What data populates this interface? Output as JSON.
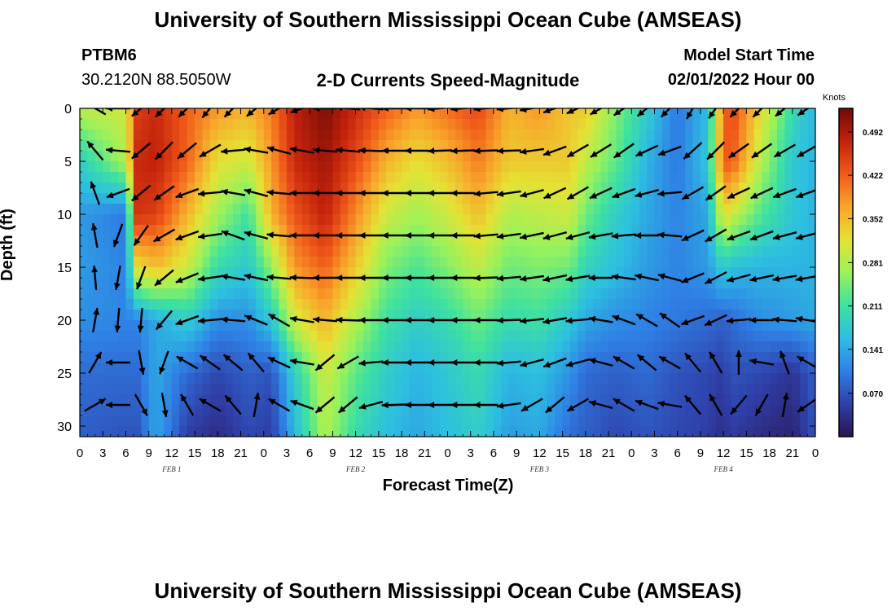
{
  "header": {
    "title": "University of Southern Mississippi Ocean Cube (AMSEAS)",
    "station_id": "PTBM6",
    "station_coords": "30.2120N  88.5050W",
    "chart_title": "2-D Currents Speed-Magnitude",
    "model_start_label": "Model Start Time",
    "model_start_value": "02/01/2022 Hour 00"
  },
  "footer": {
    "repeated_title": "University of Southern Mississippi Ocean Cube (AMSEAS)"
  },
  "colorbar": {
    "unit": "Knots",
    "ticks": [
      "0.492",
      "0.422",
      "0.352",
      "0.281",
      "0.211",
      "0.141",
      "0.070"
    ],
    "colors": [
      "#2b1452",
      "#2f3fa8",
      "#2f7fe5",
      "#2dbfe0",
      "#3ee1a0",
      "#9cf25a",
      "#e5e234",
      "#f8a52b",
      "#f05a1a",
      "#c3220c",
      "#6e0a06"
    ]
  },
  "chart_data": {
    "type": "heatmap",
    "title": "2-D Currents Speed-Magnitude",
    "xlabel": "Forecast Time(Z)",
    "ylabel": "Depth (ft)",
    "x_ticks": [
      "0",
      "3",
      "6",
      "9",
      "12",
      "15",
      "18",
      "21",
      "0",
      "3",
      "6",
      "9",
      "12",
      "15",
      "18",
      "21",
      "0",
      "3",
      "6",
      "9",
      "12",
      "15",
      "18",
      "21",
      "0",
      "3",
      "6",
      "9",
      "12",
      "15",
      "18",
      "21",
      "0"
    ],
    "x_range_hours": [
      0,
      96
    ],
    "date_labels": [
      {
        "label": "FEB 1",
        "hour": 12
      },
      {
        "label": "FEB 2",
        "hour": 36
      },
      {
        "label": "FEB 3",
        "hour": 60
      },
      {
        "label": "FEB 4",
        "hour": 84
      }
    ],
    "y_ticks": [
      "0",
      "5",
      "10",
      "15",
      "20",
      "25",
      "30"
    ],
    "y_range_ft": [
      0,
      31
    ],
    "colorbar_range_knots": [
      0,
      0.53
    ],
    "hours": [
      0,
      6,
      7.5,
      10,
      14,
      18,
      22,
      25,
      28,
      32,
      36,
      40,
      44,
      48,
      52,
      56,
      60,
      64,
      66,
      70,
      74,
      78,
      82,
      84,
      85,
      89,
      93,
      96
    ],
    "depths_ft": [
      0,
      5,
      10,
      15,
      20,
      25,
      31
    ],
    "speed_knots": [
      [
        0.29,
        0.3,
        0.45,
        0.47,
        0.42,
        0.38,
        0.36,
        0.4,
        0.48,
        0.52,
        0.47,
        0.42,
        0.38,
        0.41,
        0.44,
        0.36,
        0.38,
        0.34,
        0.34,
        0.25,
        0.18,
        0.1,
        0.16,
        0.4,
        0.45,
        0.32,
        0.2,
        0.15
      ],
      [
        0.18,
        0.28,
        0.47,
        0.48,
        0.42,
        0.32,
        0.3,
        0.38,
        0.47,
        0.5,
        0.44,
        0.36,
        0.32,
        0.35,
        0.4,
        0.34,
        0.34,
        0.34,
        0.29,
        0.23,
        0.15,
        0.1,
        0.17,
        0.42,
        0.43,
        0.28,
        0.17,
        0.15
      ],
      [
        0.13,
        0.1,
        0.46,
        0.45,
        0.36,
        0.27,
        0.21,
        0.36,
        0.43,
        0.48,
        0.39,
        0.3,
        0.27,
        0.3,
        0.35,
        0.28,
        0.29,
        0.3,
        0.24,
        0.18,
        0.14,
        0.11,
        0.14,
        0.33,
        0.3,
        0.22,
        0.17,
        0.15
      ],
      [
        0.13,
        0.11,
        0.32,
        0.35,
        0.3,
        0.2,
        0.17,
        0.26,
        0.38,
        0.42,
        0.34,
        0.25,
        0.22,
        0.25,
        0.29,
        0.24,
        0.25,
        0.24,
        0.19,
        0.16,
        0.13,
        0.11,
        0.13,
        0.18,
        0.16,
        0.15,
        0.15,
        0.15
      ],
      [
        0.12,
        0.11,
        0.11,
        0.14,
        0.18,
        0.12,
        0.12,
        0.17,
        0.3,
        0.36,
        0.28,
        0.21,
        0.18,
        0.2,
        0.24,
        0.2,
        0.21,
        0.17,
        0.14,
        0.12,
        0.11,
        0.1,
        0.09,
        0.08,
        0.09,
        0.12,
        0.13,
        0.14
      ],
      [
        0.09,
        0.09,
        0.09,
        0.14,
        0.09,
        0.06,
        0.08,
        0.07,
        0.18,
        0.3,
        0.23,
        0.18,
        0.15,
        0.17,
        0.2,
        0.15,
        0.16,
        0.12,
        0.09,
        0.08,
        0.09,
        0.07,
        0.06,
        0.05,
        0.07,
        0.06,
        0.04,
        0.08
      ],
      [
        0.08,
        0.07,
        0.07,
        0.14,
        0.05,
        0.03,
        0.06,
        0.05,
        0.15,
        0.28,
        0.2,
        0.16,
        0.14,
        0.16,
        0.18,
        0.13,
        0.14,
        0.09,
        0.08,
        0.06,
        0.07,
        0.06,
        0.05,
        0.03,
        0.05,
        0.03,
        0.02,
        0.07
      ]
    ],
    "vector_hours": [
      2,
      5,
      8,
      11,
      14,
      17,
      20,
      23,
      26,
      29,
      32,
      35,
      38,
      41,
      44,
      47,
      50,
      53,
      56,
      59,
      62,
      65,
      68,
      71,
      74,
      77,
      80,
      83,
      86,
      89,
      92,
      95
    ],
    "vector_depths_ft": [
      0,
      4,
      8,
      12,
      16,
      20,
      24,
      28
    ],
    "vector_direction_deg": [
      [
        300,
        270,
        230,
        225,
        225,
        220,
        225,
        230,
        240,
        250,
        270,
        275,
        275,
        270,
        270,
        265,
        265,
        265,
        265,
        260,
        250,
        245,
        240,
        235,
        230,
        225,
        210,
        215,
        225,
        225,
        230,
        235
      ],
      [
        320,
        275,
        230,
        225,
        230,
        240,
        265,
        280,
        285,
        280,
        275,
        275,
        272,
        270,
        270,
        268,
        268,
        268,
        268,
        262,
        250,
        240,
        238,
        235,
        245,
        250,
        228,
        225,
        235,
        235,
        240,
        240
      ],
      [
        340,
        250,
        230,
        235,
        250,
        265,
        280,
        285,
        275,
        270,
        270,
        270,
        270,
        270,
        270,
        270,
        270,
        265,
        262,
        255,
        245,
        240,
        245,
        250,
        255,
        265,
        240,
        235,
        245,
        245,
        250,
        250
      ],
      [
        350,
        200,
        215,
        240,
        250,
        262,
        290,
        285,
        275,
        270,
        270,
        270,
        270,
        270,
        270,
        270,
        270,
        265,
        262,
        258,
        255,
        255,
        260,
        265,
        270,
        275,
        245,
        240,
        250,
        250,
        255,
        255
      ],
      [
        355,
        190,
        200,
        230,
        248,
        262,
        280,
        282,
        275,
        272,
        270,
        270,
        270,
        270,
        270,
        270,
        270,
        268,
        265,
        262,
        258,
        260,
        270,
        278,
        282,
        285,
        248,
        242,
        255,
        258,
        260,
        260
      ],
      [
        10,
        185,
        185,
        220,
        250,
        265,
        275,
        292,
        300,
        280,
        275,
        272,
        270,
        270,
        270,
        270,
        270,
        270,
        268,
        264,
        260,
        265,
        280,
        290,
        300,
        305,
        250,
        245,
        265,
        270,
        275,
        280
      ],
      [
        30,
        270,
        170,
        200,
        300,
        305,
        310,
        320,
        295,
        280,
        230,
        240,
        265,
        270,
        270,
        270,
        270,
        270,
        265,
        255,
        250,
        255,
        285,
        300,
        310,
        300,
        320,
        330,
        0,
        280,
        340,
        300
      ],
      [
        60,
        270,
        150,
        170,
        330,
        300,
        320,
        10,
        300,
        290,
        230,
        230,
        255,
        268,
        270,
        270,
        270,
        270,
        262,
        240,
        230,
        240,
        285,
        300,
        290,
        280,
        320,
        330,
        220,
        210,
        10,
        235
      ]
    ]
  }
}
